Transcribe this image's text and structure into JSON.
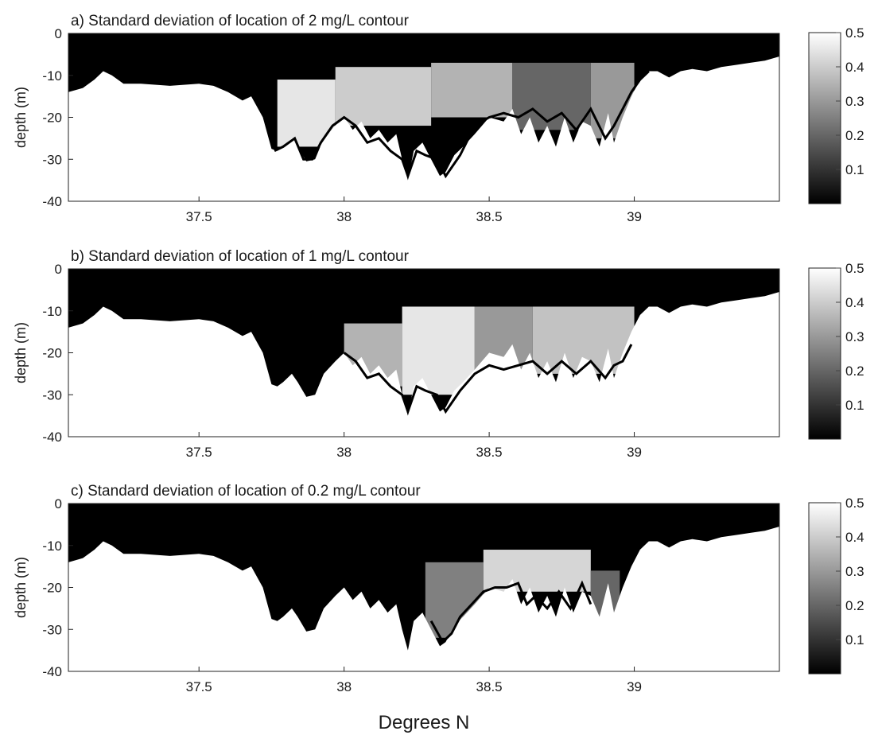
{
  "figure": {
    "xlabel": "Degrees N",
    "ylabel": "depth (m)"
  },
  "chart_data": [
    {
      "type": "heatmap",
      "title": "a) Standard deviation of location of 2 mg/L contour",
      "xlabel": "Degrees N",
      "ylabel": "depth (m)",
      "xlim": [
        37.05,
        39.5
      ],
      "ylim": [
        -40,
        0
      ],
      "xticks": [
        "37.5",
        "38",
        "38.5",
        "39"
      ],
      "xtick_values": [
        37.5,
        38,
        38.5,
        39
      ],
      "yticks": [
        "0",
        "-10",
        "-20",
        "-30",
        "-40"
      ],
      "ytick_values": [
        0,
        -10,
        -20,
        -30,
        -40
      ],
      "colorbar": {
        "min": 0,
        "max": 0.5,
        "ticks": [
          "0.5",
          "0.4",
          "0.3",
          "0.2",
          "0.1"
        ],
        "tick_values": [
          0.5,
          0.4,
          0.3,
          0.2,
          0.1
        ],
        "colormap": "gray"
      },
      "contour_line": {
        "x": [
          37.76,
          37.79,
          37.83,
          37.86,
          37.89,
          37.92,
          37.96,
          38.0,
          38.04,
          38.08,
          38.12,
          38.16,
          38.2,
          38.22,
          38.25,
          38.28,
          38.32,
          38.35,
          38.4,
          38.45,
          38.5,
          38.55,
          38.6,
          38.65,
          38.7,
          38.75,
          38.8,
          38.85,
          38.9,
          38.93,
          38.96,
          38.99,
          39.02,
          39.05
        ],
        "depth": [
          -28,
          -27,
          -25,
          -30,
          -30,
          -26,
          -22,
          -20,
          -22,
          -26,
          -25,
          -28,
          -30,
          -34,
          -28,
          -29,
          -30,
          -34,
          -29,
          -22,
          -20,
          -19,
          -20,
          -18,
          -21,
          -19,
          -23,
          -18,
          -25,
          -22,
          -18,
          -14,
          -11,
          -9
        ]
      },
      "regions": [
        {
          "x_range": [
            37.77,
            37.97
          ],
          "depth_range": [
            -27,
            -11
          ],
          "std": 0.45
        },
        {
          "x_range": [
            37.97,
            38.3
          ],
          "depth_range": [
            -22,
            -8
          ],
          "std": 0.4
        },
        {
          "x_range": [
            38.3,
            38.58
          ],
          "depth_range": [
            -20,
            -7
          ],
          "std": 0.35
        },
        {
          "x_range": [
            38.58,
            38.85
          ],
          "depth_range": [
            -23,
            -7
          ],
          "std": 0.2
        },
        {
          "x_range": [
            38.85,
            39.0
          ],
          "depth_range": [
            -25,
            -7
          ],
          "std": 0.3
        }
      ]
    },
    {
      "type": "heatmap",
      "title": "b) Standard deviation of location of 1 mg/L contour",
      "xlabel": "Degrees N",
      "ylabel": "depth (m)",
      "xlim": [
        37.05,
        39.5
      ],
      "ylim": [
        -40,
        0
      ],
      "xticks": [
        "37.5",
        "38",
        "38.5",
        "39"
      ],
      "xtick_values": [
        37.5,
        38,
        38.5,
        39
      ],
      "yticks": [
        "0",
        "-10",
        "-20",
        "-30",
        "-40"
      ],
      "ytick_values": [
        0,
        -10,
        -20,
        -30,
        -40
      ],
      "colorbar": {
        "min": 0,
        "max": 0.5,
        "ticks": [
          "0.5",
          "0.4",
          "0.3",
          "0.2",
          "0.1"
        ],
        "tick_values": [
          0.5,
          0.4,
          0.3,
          0.2,
          0.1
        ],
        "colormap": "gray"
      },
      "contour_line": {
        "x": [
          38.0,
          38.04,
          38.08,
          38.12,
          38.16,
          38.2,
          38.22,
          38.25,
          38.28,
          38.32,
          38.35,
          38.4,
          38.45,
          38.5,
          38.55,
          38.6,
          38.65,
          38.7,
          38.75,
          38.8,
          38.85,
          38.9,
          38.93,
          38.96,
          38.99
        ],
        "depth": [
          -20,
          -22,
          -26,
          -25,
          -28,
          -30,
          -34,
          -28,
          -29,
          -30,
          -34,
          -29,
          -25,
          -23,
          -24,
          -23,
          -22,
          -25,
          -22,
          -25,
          -22,
          -26,
          -23,
          -22,
          -18
        ]
      },
      "regions": [
        {
          "x_range": [
            38.0,
            38.2
          ],
          "depth_range": [
            -28,
            -13
          ],
          "std": 0.35
        },
        {
          "x_range": [
            38.2,
            38.45
          ],
          "depth_range": [
            -30,
            -9
          ],
          "std": 0.45
        },
        {
          "x_range": [
            38.45,
            38.65
          ],
          "depth_range": [
            -24,
            -9
          ],
          "std": 0.3
        },
        {
          "x_range": [
            38.65,
            39.0
          ],
          "depth_range": [
            -25,
            -9
          ],
          "std": 0.38
        }
      ]
    },
    {
      "type": "heatmap",
      "title": "c) Standard deviation of location of 0.2 mg/L contour",
      "xlabel": "Degrees N",
      "ylabel": "depth (m)",
      "xlim": [
        37.05,
        39.5
      ],
      "ylim": [
        -40,
        0
      ],
      "xticks": [
        "37.5",
        "38",
        "38.5",
        "39"
      ],
      "xtick_values": [
        37.5,
        38,
        38.5,
        39
      ],
      "yticks": [
        "0",
        "-10",
        "-20",
        "-30",
        "-40"
      ],
      "ytick_values": [
        0,
        -10,
        -20,
        -30,
        -40
      ],
      "colorbar": {
        "min": 0,
        "max": 0.5,
        "ticks": [
          "0.5",
          "0.4",
          "0.3",
          "0.2",
          "0.1"
        ],
        "tick_values": [
          0.5,
          0.4,
          0.3,
          0.2,
          0.1
        ],
        "colormap": "gray"
      },
      "contour_line": {
        "x": [
          38.3,
          38.34,
          38.37,
          38.4,
          38.44,
          38.48,
          38.52,
          38.56,
          38.6,
          38.63,
          38.66,
          38.7,
          38.74,
          38.78,
          38.82,
          38.85
        ],
        "depth": [
          -28,
          -33,
          -31,
          -27,
          -24,
          -21,
          -20,
          -20,
          -19,
          -24,
          -22,
          -25,
          -21,
          -25,
          -19,
          -24
        ]
      },
      "regions": [
        {
          "x_range": [
            38.28,
            38.48
          ],
          "depth_range": [
            -32,
            -14
          ],
          "std": 0.25
        },
        {
          "x_range": [
            38.48,
            38.85
          ],
          "depth_range": [
            -21,
            -11
          ],
          "std": 0.42
        },
        {
          "x_range": [
            38.85,
            38.95
          ],
          "depth_range": [
            -27,
            -16
          ],
          "std": 0.2
        }
      ]
    }
  ],
  "bathymetry": {
    "x": [
      37.05,
      37.1,
      37.14,
      37.17,
      37.2,
      37.24,
      37.3,
      37.4,
      37.5,
      37.55,
      37.6,
      37.65,
      37.68,
      37.72,
      37.75,
      37.77,
      37.79,
      37.82,
      37.84,
      37.87,
      37.9,
      37.93,
      37.97,
      38.0,
      38.03,
      38.06,
      38.09,
      38.12,
      38.15,
      38.18,
      38.2,
      38.22,
      38.24,
      38.27,
      38.3,
      38.33,
      38.35,
      38.38,
      38.41,
      38.45,
      38.5,
      38.55,
      38.58,
      38.61,
      38.64,
      38.67,
      38.7,
      38.73,
      38.76,
      38.79,
      38.82,
      38.85,
      38.88,
      38.91,
      38.93,
      38.96,
      38.99,
      39.02,
      39.05,
      39.08,
      39.12,
      39.16,
      39.2,
      39.25,
      39.3,
      39.35,
      39.4,
      39.45,
      39.5
    ],
    "depth": [
      -14,
      -13,
      -11,
      -9,
      -10,
      -12,
      -12,
      -12.5,
      -12,
      -12.5,
      -14,
      -16,
      -15,
      -20,
      -27.5,
      -28,
      -27,
      -25,
      -27,
      -30.5,
      -30,
      -25,
      -22,
      -20,
      -23,
      -21,
      -25,
      -23,
      -26,
      -24,
      -30,
      -35,
      -28,
      -26,
      -30,
      -34,
      -33,
      -29,
      -27,
      -24,
      -20,
      -21,
      -18,
      -24,
      -20,
      -26,
      -22,
      -27,
      -20,
      -26,
      -21,
      -22,
      -27,
      -19,
      -26,
      -20,
      -15,
      -11,
      -9,
      -9,
      -10.5,
      -9,
      -8.5,
      -9,
      -8,
      -7.5,
      -7,
      -6.5,
      -5.5
    ]
  }
}
